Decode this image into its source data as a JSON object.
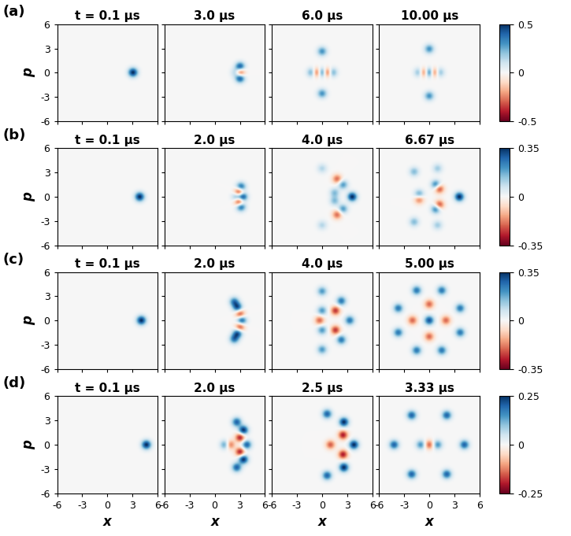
{
  "chart_data": {
    "type": "heatmap",
    "xlabel": "x",
    "ylabel": "p",
    "xlim": [
      -6,
      6
    ],
    "ylim": [
      -6,
      6
    ],
    "xticks": [
      -6,
      -3,
      0,
      3,
      6
    ],
    "yticks": [
      -6,
      -3,
      0,
      3,
      6
    ],
    "rows": [
      {
        "label": "(a)",
        "colorbar": {
          "range": [
            -0.5,
            0.5
          ],
          "ticks": [
            -0.5,
            0,
            0.5
          ]
        },
        "panels": [
          {
            "title": "t = 0.1 μs",
            "peaks": [
              [
                3,
                0,
                0.5
              ]
            ]
          },
          {
            "title": "3.0 μs",
            "peaks": [
              [
                3,
                0.7,
                0.45
              ],
              [
                3,
                -0.7,
                0.45
              ],
              [
                3,
                0,
                -0.45
              ],
              [
                2.5,
                0,
                0.2
              ]
            ]
          },
          {
            "title": "6.0 μs",
            "peaks": [
              [
                0,
                2.6,
                0.3
              ],
              [
                0,
                -2.6,
                0.3
              ],
              [
                -1.2,
                0,
                0.3
              ],
              [
                -0.6,
                0,
                -0.45
              ],
              [
                0,
                0,
                0.5
              ],
              [
                0.6,
                0,
                -0.45
              ],
              [
                1.2,
                0,
                0.3
              ]
            ]
          },
          {
            "title": "10.00 μs",
            "peaks": [
              [
                0,
                2.9,
                0.3
              ],
              [
                0,
                -2.9,
                0.3
              ],
              [
                -1.2,
                0,
                0.25
              ],
              [
                -0.6,
                0,
                -0.4
              ],
              [
                0,
                0,
                0.5
              ],
              [
                0.6,
                0,
                -0.4
              ],
              [
                1.2,
                0,
                0.25
              ]
            ]
          }
        ]
      },
      {
        "label": "(b)",
        "colorbar": {
          "range": [
            -0.35,
            0.35
          ],
          "ticks": [
            -0.35,
            0,
            0.35
          ]
        },
        "panels": [
          {
            "title": "t = 0.1 μs",
            "peaks": [
              [
                3.8,
                0,
                0.35
              ]
            ]
          },
          {
            "title": "2.0 μs",
            "peaks": [
              [
                3.3,
                0,
                0.35
              ],
              [
                2.9,
                0.6,
                -0.35
              ],
              [
                3.1,
                1.2,
                0.3
              ],
              [
                2.9,
                -0.6,
                -0.35
              ],
              [
                3.1,
                -1.2,
                0.3
              ],
              [
                2.6,
                0,
                0.2
              ]
            ]
          },
          {
            "title": "4.0 μs",
            "peaks": [
              [
                3.6,
                0,
                0.35
              ],
              [
                2.5,
                1.5,
                0.2
              ],
              [
                2.5,
                -1.5,
                0.2
              ],
              [
                1.8,
                2.2,
                -0.2
              ],
              [
                1.8,
                -2.2,
                -0.2
              ],
              [
                1.5,
                0.5,
                0.15
              ],
              [
                1.5,
                -0.5,
                0.15
              ],
              [
                0,
                3.5,
                0.1
              ],
              [
                0,
                -3.5,
                0.1
              ]
            ]
          },
          {
            "title": "6.67 μs",
            "peaks": [
              [
                3.6,
                0,
                0.35
              ],
              [
                -1.8,
                3.1,
                0.15
              ],
              [
                -1.8,
                -3.1,
                0.15
              ],
              [
                0.8,
                1.5,
                0.25
              ],
              [
                1.2,
                1.0,
                -0.25
              ],
              [
                0.8,
                -1.5,
                0.25
              ],
              [
                1.2,
                -1.0,
                -0.25
              ],
              [
                -1.2,
                0.3,
                0.2
              ],
              [
                -1.2,
                -0.3,
                -0.2
              ],
              [
                1.0,
                3.5,
                0.12
              ],
              [
                1.0,
                -3.5,
                0.12
              ]
            ]
          }
        ]
      },
      {
        "label": "(c)",
        "colorbar": {
          "range": [
            -0.35,
            0.35
          ],
          "ticks": [
            -0.35,
            0,
            0.35
          ]
        },
        "panels": [
          {
            "title": "t = 0.1 μs",
            "peaks": [
              [
                4,
                0,
                0.35
              ]
            ]
          },
          {
            "title": "2.0 μs",
            "peaks": [
              [
                3.2,
                0,
                0.3
              ],
              [
                3.0,
                0.8,
                -0.25
              ],
              [
                3.0,
                -0.8,
                -0.25
              ],
              [
                2.7,
                1.6,
                0.3
              ],
              [
                2.7,
                -1.6,
                0.3
              ],
              [
                2.3,
                2.3,
                0.25
              ],
              [
                2.3,
                -2.3,
                0.25
              ]
            ]
          },
          {
            "title": "4.0 μs",
            "peaks": [
              [
                3.3,
                0,
                0.25
              ],
              [
                2.3,
                2.4,
                0.25
              ],
              [
                2.3,
                -2.4,
                0.25
              ],
              [
                0,
                3.6,
                0.2
              ],
              [
                0,
                -3.6,
                0.2
              ],
              [
                1.6,
                1.2,
                -0.25
              ],
              [
                1.6,
                -1.2,
                -0.25
              ],
              [
                0,
                1.2,
                0.2
              ],
              [
                0,
                -1.2,
                0.2
              ],
              [
                -0.3,
                0,
                -0.2
              ]
            ]
          },
          {
            "title": "5.00 μs",
            "peaks": [
              [
                3.7,
                1.5,
                0.25
              ],
              [
                1.5,
                3.7,
                0.25
              ],
              [
                -1.5,
                3.7,
                0.25
              ],
              [
                -3.7,
                1.5,
                0.25
              ],
              [
                -3.7,
                -1.5,
                0.25
              ],
              [
                -1.5,
                -3.7,
                0.25
              ],
              [
                1.5,
                -3.7,
                0.25
              ],
              [
                3.7,
                -1.5,
                0.25
              ],
              [
                0,
                0,
                0.3
              ],
              [
                0,
                2,
                -0.2
              ],
              [
                0,
                -2,
                -0.2
              ],
              [
                2,
                0,
                -0.2
              ],
              [
                -2,
                0,
                -0.2
              ]
            ]
          }
        ]
      },
      {
        "label": "(d)",
        "colorbar": {
          "range": [
            -0.25,
            0.25
          ],
          "ticks": [
            -0.25,
            0,
            0.25
          ]
        },
        "panels": [
          {
            "title": "t = 0.1 μs",
            "peaks": [
              [
                4.6,
                0,
                0.25
              ]
            ]
          },
          {
            "title": "2.0 μs",
            "peaks": [
              [
                3.4,
                1.8,
                0.25
              ],
              [
                3.4,
                -1.8,
                0.25
              ],
              [
                3.8,
                0,
                0.2
              ],
              [
                2.6,
                2.8,
                0.2
              ],
              [
                2.6,
                -2.8,
                0.2
              ],
              [
                3.0,
                0.9,
                -0.2
              ],
              [
                3.0,
                -0.9,
                -0.2
              ],
              [
                1.8,
                0,
                -0.15
              ],
              [
                1.2,
                0,
                0.15
              ]
            ]
          },
          {
            "title": "2.5 μs",
            "peaks": [
              [
                3.8,
                0,
                0.25
              ],
              [
                2.6,
                2.8,
                0.25
              ],
              [
                2.6,
                -2.8,
                0.25
              ],
              [
                0.6,
                3.8,
                0.2
              ],
              [
                0.6,
                -3.8,
                0.2
              ],
              [
                2.5,
                1.2,
                -0.2
              ],
              [
                2.5,
                -1.2,
                -0.2
              ],
              [
                1.0,
                0,
                -0.15
              ]
            ]
          },
          {
            "title": "3.33 μs",
            "peaks": [
              [
                4.2,
                0,
                0.2
              ],
              [
                2.1,
                3.64,
                0.2
              ],
              [
                -2.1,
                3.64,
                0.2
              ],
              [
                -4.2,
                0,
                0.2
              ],
              [
                -2.1,
                -3.64,
                0.2
              ],
              [
                2.1,
                -3.64,
                0.2
              ],
              [
                0,
                0,
                -0.15
              ],
              [
                1,
                0,
                0.15
              ],
              [
                -1,
                0,
                0.15
              ]
            ]
          }
        ]
      }
    ]
  }
}
